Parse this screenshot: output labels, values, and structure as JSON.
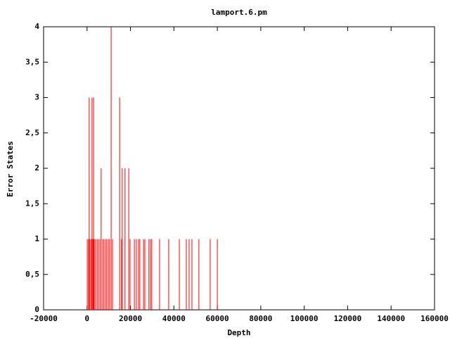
{
  "chart_data": {
    "type": "impulse",
    "title": "lamport.6.pm",
    "x_label": "Depth",
    "y_label": "Error States",
    "x": [
      100,
      700,
      1000,
      1400,
      2000,
      2300,
      2700,
      3000,
      3300,
      3900,
      4600,
      5200,
      5900,
      6500,
      7200,
      7800,
      8500,
      9100,
      9800,
      10400,
      11100,
      11700,
      15000,
      15900,
      16200,
      17500,
      19200,
      19800,
      21800,
      22700,
      23700,
      24300,
      26000,
      26600,
      28500,
      29200,
      29800,
      33400,
      37600,
      42500,
      45700,
      47000,
      48300,
      51500,
      56700,
      60000
    ],
    "values": [
      1,
      1,
      3,
      1,
      1,
      3,
      1,
      3,
      1,
      1,
      1,
      1,
      1,
      2,
      1,
      1,
      1,
      1,
      1,
      1,
      4,
      1,
      3,
      1,
      2,
      2,
      2,
      1,
      1,
      1,
      1,
      1,
      1,
      1,
      1,
      1,
      1,
      1,
      1,
      1,
      1,
      1,
      1,
      1,
      1,
      1
    ],
    "color": "#ff0000",
    "xlim": [
      -20000,
      160000
    ],
    "xticks": [
      -20000,
      0,
      20000,
      40000,
      60000,
      80000,
      100000,
      120000,
      140000,
      160000
    ],
    "ylim": [
      0,
      4
    ],
    "yticks": [
      0,
      {
        "value": 0.5,
        "label": "0,5"
      },
      1,
      {
        "value": 1.5,
        "label": "1,5"
      },
      2,
      {
        "value": 2.5,
        "label": "2,5"
      },
      3,
      {
        "value": 3.5,
        "label": "3,5"
      },
      4
    ]
  }
}
